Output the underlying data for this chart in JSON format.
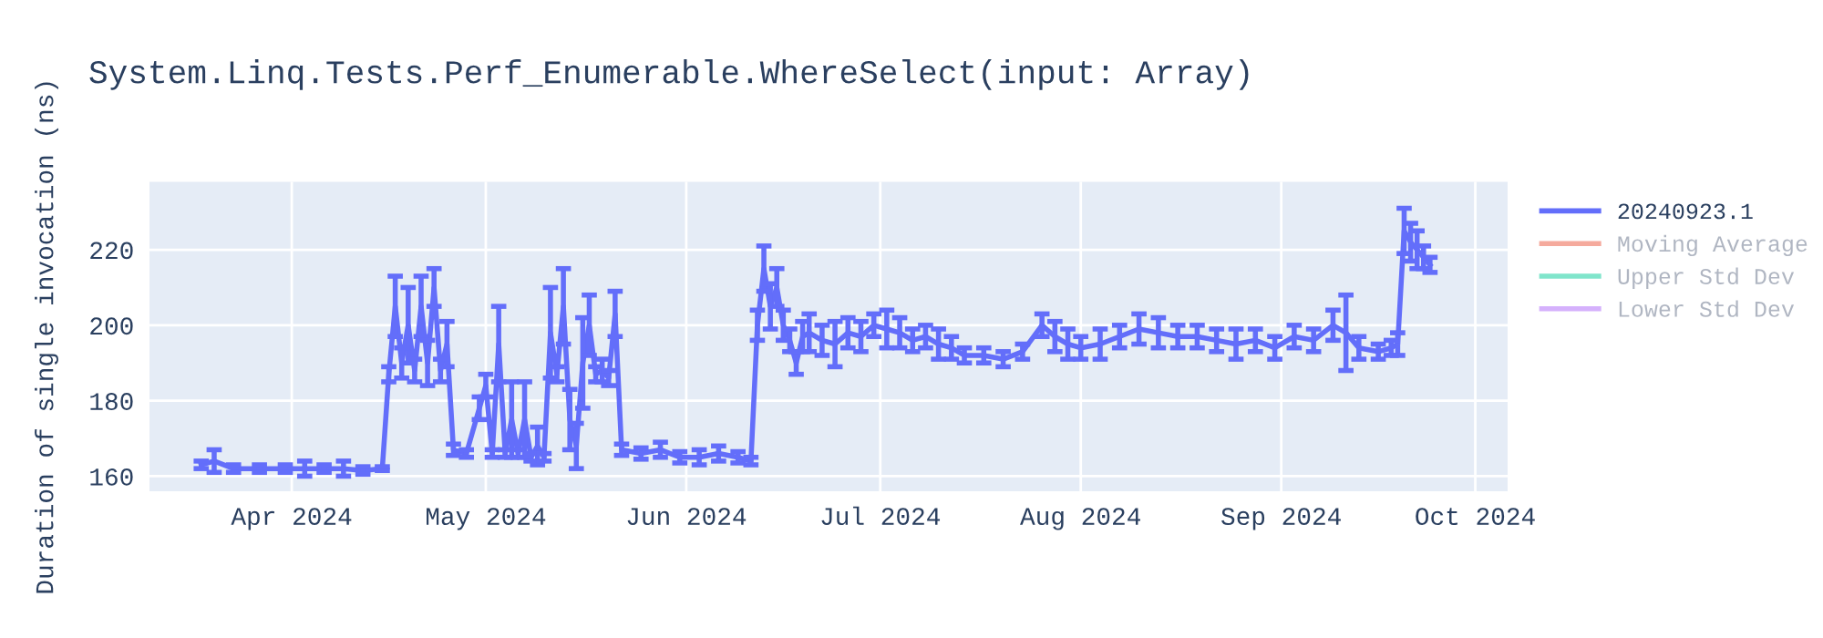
{
  "chart_data": {
    "type": "line",
    "title": "System.Linq.Tests.Perf_Enumerable.WhereSelect(input: Array)",
    "ylabel": "Duration of single invocation (ns)",
    "x": [
      "2024-03-18",
      "2024-03-20",
      "2024-03-23",
      "2024-03-27",
      "2024-03-31",
      "2024-04-03",
      "2024-04-06",
      "2024-04-09",
      "2024-04-12",
      "2024-04-15",
      "2024-04-16",
      "2024-04-17",
      "2024-04-18",
      "2024-04-19",
      "2024-04-20",
      "2024-04-21",
      "2024-04-22",
      "2024-04-23",
      "2024-04-24",
      "2024-04-25",
      "2024-04-26",
      "2024-04-28",
      "2024-04-30",
      "2024-05-01",
      "2024-05-02",
      "2024-05-03",
      "2024-05-04",
      "2024-05-05",
      "2024-05-06",
      "2024-05-07",
      "2024-05-08",
      "2024-05-09",
      "2024-05-10",
      "2024-05-11",
      "2024-05-12",
      "2024-05-13",
      "2024-05-14",
      "2024-05-15",
      "2024-05-16",
      "2024-05-17",
      "2024-05-18",
      "2024-05-19",
      "2024-05-20",
      "2024-05-21",
      "2024-05-22",
      "2024-05-25",
      "2024-05-28",
      "2024-05-31",
      "2024-06-03",
      "2024-06-06",
      "2024-06-09",
      "2024-06-11",
      "2024-06-12",
      "2024-06-13",
      "2024-06-14",
      "2024-06-15",
      "2024-06-16",
      "2024-06-17",
      "2024-06-18",
      "2024-06-19",
      "2024-06-20",
      "2024-06-22",
      "2024-06-24",
      "2024-06-26",
      "2024-06-28",
      "2024-06-30",
      "2024-07-02",
      "2024-07-04",
      "2024-07-06",
      "2024-07-08",
      "2024-07-10",
      "2024-07-12",
      "2024-07-14",
      "2024-07-17",
      "2024-07-20",
      "2024-07-23",
      "2024-07-26",
      "2024-07-28",
      "2024-07-30",
      "2024-08-01",
      "2024-08-04",
      "2024-08-07",
      "2024-08-10",
      "2024-08-13",
      "2024-08-16",
      "2024-08-19",
      "2024-08-22",
      "2024-08-25",
      "2024-08-28",
      "2024-08-31",
      "2024-09-03",
      "2024-09-06",
      "2024-09-09",
      "2024-09-11",
      "2024-09-13",
      "2024-09-16",
      "2024-09-18",
      "2024-09-19",
      "2024-09-20",
      "2024-09-21",
      "2024-09-22",
      "2024-09-23",
      "2024-09-24"
    ],
    "xlim": [
      "2024-03-10",
      "2024-10-06"
    ],
    "xticks": [
      {
        "value": "2024-04-01",
        "label": "Apr 2024"
      },
      {
        "value": "2024-05-01",
        "label": "May 2024"
      },
      {
        "value": "2024-06-01",
        "label": "Jun 2024"
      },
      {
        "value": "2024-07-01",
        "label": "Jul 2024"
      },
      {
        "value": "2024-08-01",
        "label": "Aug 2024"
      },
      {
        "value": "2024-09-01",
        "label": "Sep 2024"
      },
      {
        "value": "2024-10-01",
        "label": "Oct 2024"
      }
    ],
    "ylim": [
      156,
      238
    ],
    "yticks": [
      160,
      180,
      200,
      220
    ],
    "grid": true,
    "legend": "top right",
    "marker": "none",
    "line_style": "solid",
    "series": [
      {
        "name": "20240923.1",
        "color": "#636efa",
        "values": [
          163,
          164,
          162,
          162,
          162,
          162,
          162,
          162,
          161.5,
          162,
          187,
          205,
          190,
          200,
          188,
          205,
          190,
          210,
          188,
          195,
          167,
          166,
          178,
          184,
          166,
          195,
          166,
          175,
          166,
          175,
          165,
          168,
          165,
          198,
          187,
          205,
          175,
          168,
          190,
          200,
          187,
          188,
          186,
          203,
          167,
          166,
          167,
          165,
          165,
          166,
          165,
          164,
          200,
          215,
          205,
          210,
          200,
          196,
          190,
          197,
          198,
          196,
          195,
          198,
          197,
          200,
          199,
          198,
          196,
          197,
          195,
          194,
          192,
          192,
          191,
          193,
          200,
          197,
          195,
          194,
          195,
          197,
          199,
          198,
          197,
          197,
          196,
          195,
          196,
          194,
          197,
          196,
          200,
          198,
          194,
          193,
          194,
          195,
          225,
          222,
          220,
          218,
          216
        ],
        "errors": [
          1,
          3,
          1,
          1,
          1,
          2,
          1,
          2,
          1,
          0.5,
          2,
          8,
          4,
          10,
          3,
          8,
          6,
          5,
          3,
          6,
          1.5,
          1,
          3,
          3,
          1,
          10,
          1,
          10,
          1,
          10,
          1,
          5,
          1,
          12,
          2,
          10,
          8,
          6,
          12,
          8,
          2,
          3,
          2,
          6,
          1.5,
          1.5,
          2,
          1.5,
          2,
          2,
          1.5,
          1,
          4,
          6,
          6,
          5,
          4,
          3,
          3,
          4,
          5,
          4,
          6,
          4,
          4,
          3,
          5,
          4,
          3,
          3,
          4,
          3,
          2,
          2,
          2,
          2,
          3,
          4,
          4,
          3,
          4,
          3,
          4,
          4,
          3,
          3,
          3,
          4,
          3,
          3,
          3,
          3,
          4,
          10,
          3,
          2,
          2,
          3,
          6,
          5,
          5,
          3,
          2
        ]
      },
      {
        "name": "Moving Average",
        "color": "#f5aa9d",
        "values": [
          null,
          null,
          null,
          null,
          null,
          null,
          null,
          null,
          null,
          null,
          null,
          null,
          null,
          null,
          null,
          null,
          null,
          null,
          null,
          null,
          null,
          null,
          null,
          null,
          null,
          null,
          null,
          null,
          null,
          null,
          null,
          null,
          null,
          null,
          null,
          null,
          null,
          null,
          null,
          null,
          null,
          null,
          null,
          null,
          null,
          null,
          null,
          null,
          null,
          null,
          null,
          null,
          null,
          null,
          null,
          null,
          null,
          null,
          null,
          null,
          null,
          null,
          null,
          null,
          null,
          null,
          null,
          null,
          null,
          null,
          null,
          null,
          null,
          null,
          null,
          null,
          null,
          null,
          null,
          null,
          null,
          null,
          null,
          null,
          null,
          null,
          null,
          null,
          null,
          null,
          null,
          null,
          null,
          null,
          null,
          null,
          null,
          null,
          null,
          null,
          null,
          null,
          null
        ]
      },
      {
        "name": "Upper Std Dev",
        "color": "#80e5cb",
        "values": [
          null,
          null,
          null,
          null,
          null,
          null,
          null,
          null,
          null,
          null,
          null,
          null,
          null,
          null,
          null,
          null,
          null,
          null,
          null,
          null,
          null,
          null,
          null,
          null,
          null,
          null,
          null,
          null,
          null,
          null,
          null,
          null,
          null,
          null,
          null,
          null,
          null,
          null,
          null,
          null,
          null,
          null,
          null,
          null,
          null,
          null,
          null,
          null,
          null,
          null,
          null,
          null,
          null,
          null,
          null,
          null,
          null,
          null,
          null,
          null,
          null,
          null,
          null,
          null,
          null,
          null,
          null,
          null,
          null,
          null,
          null,
          null,
          null,
          null,
          null,
          null,
          null,
          null,
          null,
          null,
          null,
          null,
          null,
          null,
          null,
          null,
          null,
          null,
          null,
          null,
          null,
          null,
          null,
          null,
          null,
          null,
          null,
          null,
          null,
          null,
          null,
          null,
          null
        ]
      },
      {
        "name": "Lower Std Dev",
        "color": "#d5b1fc",
        "values": [
          null,
          null,
          null,
          null,
          null,
          null,
          null,
          null,
          null,
          null,
          null,
          null,
          null,
          null,
          null,
          null,
          null,
          null,
          null,
          null,
          null,
          null,
          null,
          null,
          null,
          null,
          null,
          null,
          null,
          null,
          null,
          null,
          null,
          null,
          null,
          null,
          null,
          null,
          null,
          null,
          null,
          null,
          null,
          null,
          null,
          null,
          null,
          null,
          null,
          null,
          null,
          null,
          null,
          null,
          null,
          null,
          null,
          null,
          null,
          null,
          null,
          null,
          null,
          null,
          null,
          null,
          null,
          null,
          null,
          null,
          null,
          null,
          null,
          null,
          null,
          null,
          null,
          null,
          null,
          null,
          null,
          null,
          null,
          null,
          null,
          null,
          null,
          null,
          null,
          null,
          null,
          null,
          null,
          null,
          null,
          null,
          null,
          null,
          null,
          null,
          null,
          null,
          null
        ]
      }
    ]
  }
}
